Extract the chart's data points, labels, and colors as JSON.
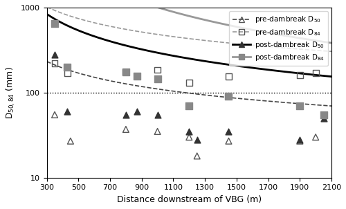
{
  "title": "",
  "xlabel": "Distance downstream of VBG (m)",
  "ylabel": "D$_{50, 84}$ (mm)",
  "xlim": [
    300,
    2100
  ],
  "ylim": [
    10,
    1000
  ],
  "xticks": [
    300,
    500,
    700,
    900,
    1100,
    1300,
    1500,
    1700,
    1900,
    2100
  ],
  "dotted_line_y": 100,
  "pre_d50_x": [
    350,
    450,
    800,
    1000,
    1200,
    1250,
    1450,
    1900,
    2000
  ],
  "pre_d50_y": [
    55,
    27,
    37,
    35,
    30,
    18,
    27,
    27,
    30
  ],
  "pre_d84_x": [
    350,
    430,
    800,
    1000,
    1200,
    1450,
    1900,
    2000
  ],
  "pre_d84_y": [
    220,
    170,
    175,
    185,
    130,
    155,
    160,
    170
  ],
  "post_d50_x": [
    350,
    430,
    800,
    870,
    1000,
    1200,
    1250,
    1450,
    1900,
    2050
  ],
  "post_d50_y": [
    280,
    60,
    55,
    60,
    55,
    35,
    28,
    35,
    28,
    50
  ],
  "post_d84_x": [
    350,
    430,
    800,
    870,
    1000,
    1200,
    1450,
    1900,
    2050
  ],
  "post_d84_y": [
    650,
    200,
    175,
    155,
    145,
    70,
    90,
    70,
    55
  ],
  "pre_d50_a": 8000,
  "pre_d50_b": -0.62,
  "pre_d84_a": 35000,
  "pre_d84_b": -0.62,
  "post_d50_a": 120000,
  "post_d50_b": -0.87,
  "post_d84_a": 8000000,
  "post_d84_b": -1.3,
  "color_pre_d50_line": "#444444",
  "color_pre_d84_line": "#999999",
  "color_post_d50_line": "#000000",
  "color_post_d84_line": "#999999",
  "color_pre_d50_marker": "#555555",
  "color_pre_d84_marker": "#555555",
  "color_post_d50_marker": "#333333",
  "color_post_d84_marker": "#888888",
  "legend_labels": [
    "pre-dambreak D$_{50}$",
    "pre-dambreak D$_{84}$",
    "post-dambreak D$_{50}$",
    "post-dambreak D$_{84}$"
  ],
  "figsize": [
    5.0,
    3.02
  ],
  "dpi": 100
}
